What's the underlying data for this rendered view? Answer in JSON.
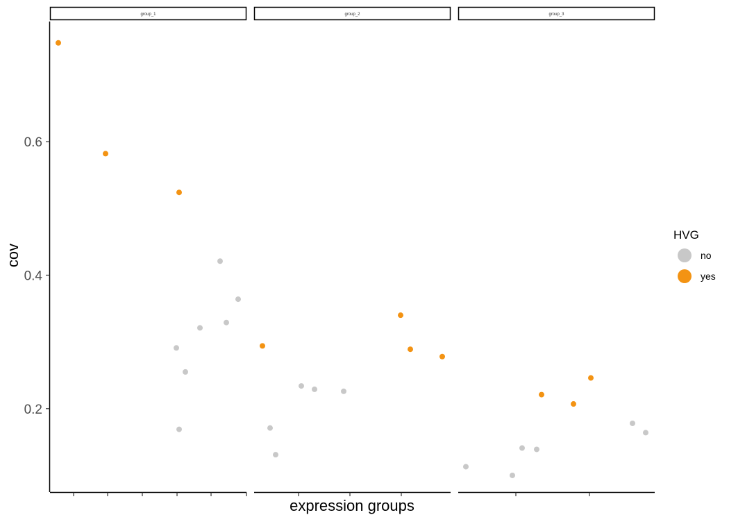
{
  "chart_data": {
    "type": "scatter",
    "facet_by": "group",
    "panels": [
      {
        "strip": "group_1",
        "points": [
          {
            "cov": 0.748,
            "hvg": "yes"
          },
          {
            "cov": 0.582,
            "hvg": "yes"
          },
          {
            "cov": 0.524,
            "hvg": "yes"
          },
          {
            "cov": 0.421,
            "hvg": "no"
          },
          {
            "cov": 0.364,
            "hvg": "no"
          },
          {
            "cov": 0.329,
            "hvg": "no"
          },
          {
            "cov": 0.321,
            "hvg": "no"
          },
          {
            "cov": 0.291,
            "hvg": "no"
          },
          {
            "cov": 0.255,
            "hvg": "no"
          },
          {
            "cov": 0.169,
            "hvg": "no"
          }
        ]
      },
      {
        "strip": "group_2",
        "points": [
          {
            "cov": 0.294,
            "hvg": "yes"
          },
          {
            "cov": 0.34,
            "hvg": "yes"
          },
          {
            "cov": 0.289,
            "hvg": "yes"
          },
          {
            "cov": 0.278,
            "hvg": "yes"
          },
          {
            "cov": 0.234,
            "hvg": "no"
          },
          {
            "cov": 0.229,
            "hvg": "no"
          },
          {
            "cov": 0.226,
            "hvg": "no"
          },
          {
            "cov": 0.171,
            "hvg": "no"
          },
          {
            "cov": 0.131,
            "hvg": "no"
          }
        ]
      },
      {
        "strip": "group_3",
        "points": [
          {
            "cov": 0.246,
            "hvg": "yes"
          },
          {
            "cov": 0.221,
            "hvg": "yes"
          },
          {
            "cov": 0.207,
            "hvg": "yes"
          },
          {
            "cov": 0.178,
            "hvg": "no"
          },
          {
            "cov": 0.164,
            "hvg": "no"
          },
          {
            "cov": 0.141,
            "hvg": "no"
          },
          {
            "cov": 0.139,
            "hvg": "no"
          },
          {
            "cov": 0.113,
            "hvg": "no"
          },
          {
            "cov": 0.1,
            "hvg": "no"
          }
        ]
      }
    ],
    "ylabel": "cov",
    "xlabel": "expression groups",
    "ylim": [
      0.075,
      0.78
    ],
    "yticks": [
      0.2,
      0.4,
      0.6
    ],
    "ytick_labels": [
      "0.2",
      "0.4",
      "0.6"
    ],
    "grid": false,
    "legend": {
      "title": "HVG",
      "position": "right",
      "items": [
        {
          "key": "no",
          "label": "no",
          "color": "#C8C8C8"
        },
        {
          "key": "yes",
          "label": "yes",
          "color": "#F39313"
        }
      ]
    }
  }
}
